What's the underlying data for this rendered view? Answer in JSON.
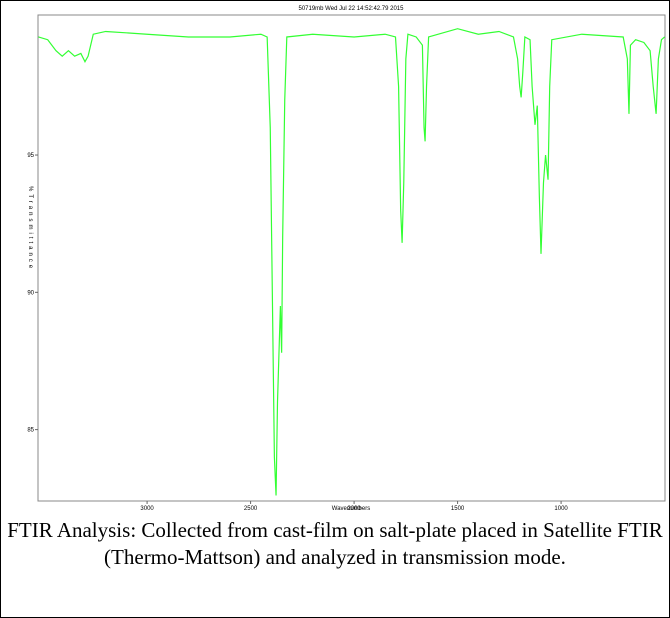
{
  "chart_data": {
    "type": "line",
    "title": "50719mb  Wed Jul 22 14:52:42.79 2015",
    "x_label": "Wavenumbers",
    "y_label": "%Transmittance",
    "x": [
      3525,
      3480,
      3440,
      3410,
      3380,
      3350,
      3320,
      3300,
      3285,
      3260,
      3200,
      3000,
      2800,
      2600,
      2450,
      2420,
      2405,
      2395,
      2385,
      2377,
      2370,
      2362,
      2356,
      2350,
      2345,
      2335,
      2325,
      2200,
      2000,
      1850,
      1800,
      1785,
      1775,
      1768,
      1760,
      1750,
      1740,
      1700,
      1670,
      1662,
      1657,
      1650,
      1640,
      1500,
      1400,
      1300,
      1230,
      1210,
      1200,
      1193,
      1185,
      1175,
      1150,
      1140,
      1126,
      1115,
      1105,
      1097,
      1085,
      1075,
      1063,
      1055,
      1045,
      900,
      700,
      680,
      672,
      665,
      640,
      600,
      570,
      555,
      541,
      530,
      515,
      500
    ],
    "series": [
      {
        "name": "%Transmittance",
        "color": "#33ff33",
        "values": [
          99.3,
          99.2,
          98.8,
          98.6,
          98.8,
          98.6,
          98.7,
          98.4,
          98.6,
          99.4,
          99.5,
          99.4,
          99.3,
          99.3,
          99.4,
          99.3,
          96.0,
          90.0,
          84.0,
          82.6,
          86.0,
          88.0,
          89.5,
          87.8,
          92.0,
          97.0,
          99.3,
          99.4,
          99.3,
          99.4,
          99.3,
          97.5,
          93.0,
          91.8,
          94.0,
          98.5,
          99.4,
          99.3,
          99.0,
          96.0,
          95.5,
          97.5,
          99.3,
          99.6,
          99.4,
          99.5,
          99.3,
          98.5,
          97.5,
          97.1,
          98.0,
          99.3,
          99.2,
          97.5,
          96.1,
          96.8,
          93.5,
          91.4,
          94.0,
          95.0,
          94.1,
          97.5,
          99.2,
          99.4,
          99.3,
          98.5,
          96.5,
          99.0,
          99.2,
          99.1,
          98.8,
          97.5,
          96.5,
          98.5,
          99.2,
          99.3
        ]
      }
    ],
    "xlim": [
      3527,
      498
    ],
    "ylim": [
      82.4,
      100.1
    ],
    "xticks": [
      3000,
      2500,
      2000,
      1500,
      1000
    ],
    "yticks": [
      85,
      90,
      95
    ]
  },
  "caption": "FTIR Analysis: Collected from cast-film on salt-plate placed in Satellite FTIR (Thermo-Mattson) and analyzed in transmission mode."
}
